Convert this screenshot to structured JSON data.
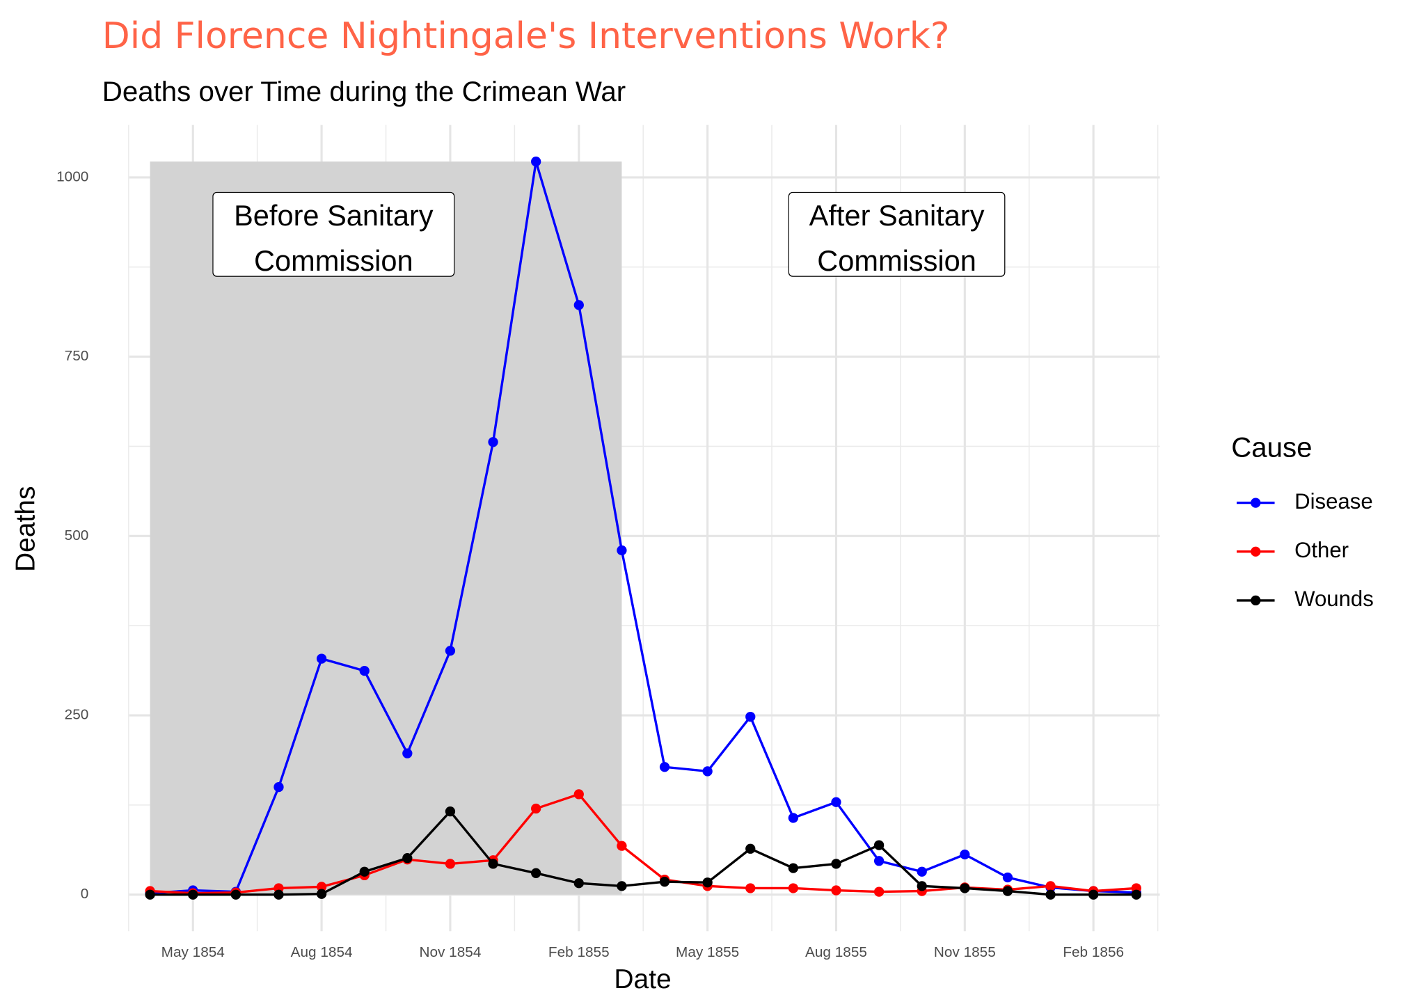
{
  "chart_data": {
    "type": "line",
    "title": "Did Florence Nightingale's Interventions Work?",
    "subtitle": "Deaths over Time during the Crimean War",
    "x_label": "Date",
    "y_label": "Deaths",
    "categories": [
      null,
      "May 1854",
      null,
      null,
      "Aug 1854",
      null,
      null,
      "Nov 1854",
      null,
      null,
      "Feb 1855",
      null,
      null,
      "May 1855",
      null,
      null,
      "Aug 1855",
      null,
      null,
      "Nov 1855",
      null,
      null,
      "Feb 1856",
      null
    ],
    "series": [
      {
        "name": "Disease",
        "color": "#0000ff",
        "values": [
          2,
          6,
          4,
          150,
          329,
          312,
          197,
          340,
          631,
          1022,
          822,
          480,
          178,
          172,
          248,
          107,
          129,
          47,
          32,
          56,
          24,
          10,
          5,
          3
        ]
      },
      {
        "name": "Other",
        "color": "#ff0000",
        "values": [
          5,
          2,
          3,
          9,
          11,
          27,
          49,
          43,
          48,
          120,
          140,
          68,
          21,
          12,
          9,
          9,
          6,
          4,
          5,
          10,
          7,
          12,
          5,
          9
        ]
      },
      {
        "name": "Wounds",
        "color": "#000000",
        "values": [
          0,
          0,
          0,
          0,
          1,
          32,
          51,
          116,
          43,
          30,
          16,
          12,
          18,
          17,
          64,
          37,
          43,
          69,
          12,
          9,
          5,
          0,
          0,
          0
        ]
      }
    ],
    "ylim": [
      -51,
      1073
    ],
    "yticks": [
      0,
      250,
      500,
      750,
      1000
    ],
    "grid": true,
    "legend_title": "Cause",
    "legend_position": "right",
    "annotations": [
      "Before Sanitary\nCommission",
      "After Sanitary\nCommission"
    ]
  }
}
